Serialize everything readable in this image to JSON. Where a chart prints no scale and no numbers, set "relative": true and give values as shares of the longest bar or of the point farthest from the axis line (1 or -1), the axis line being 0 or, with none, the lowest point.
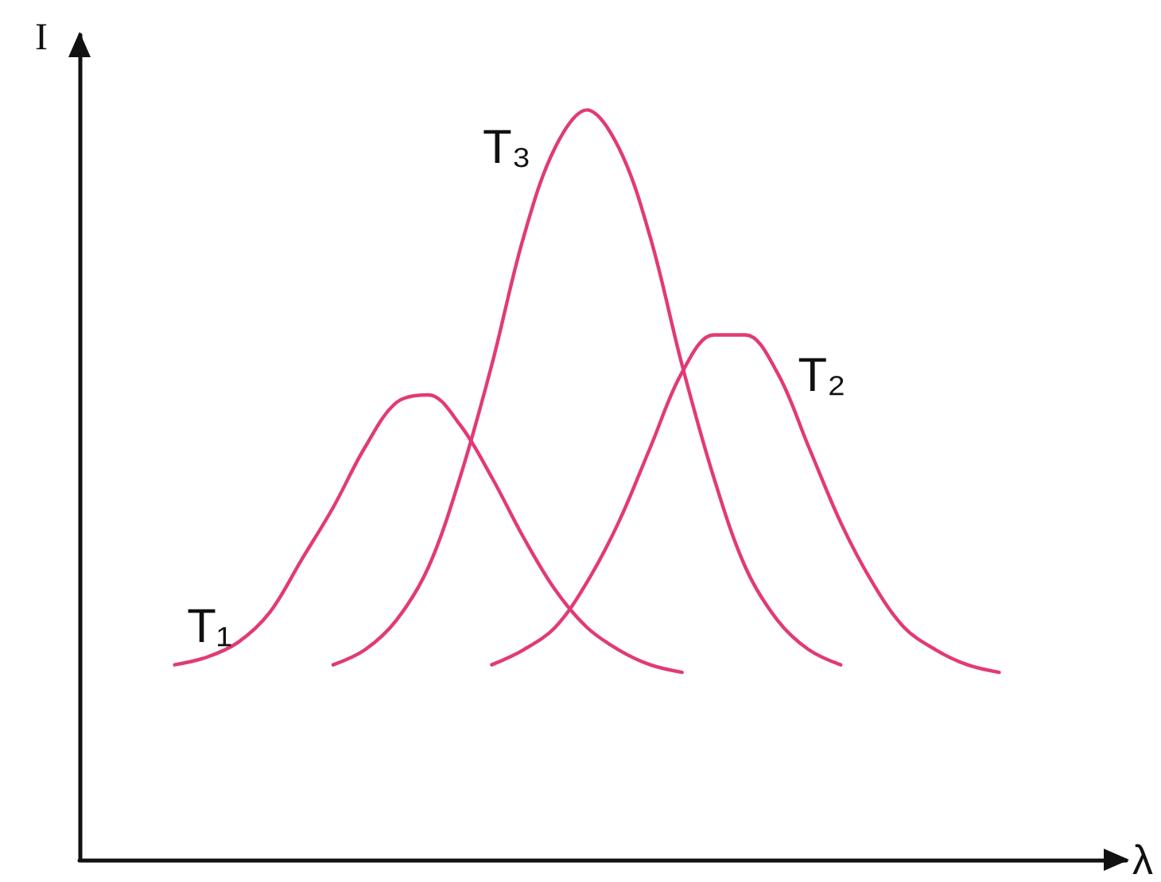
{
  "chart_data": {
    "type": "line",
    "relative": true,
    "xlabel": "λ",
    "ylabel": "I",
    "grid": false,
    "legend": false,
    "marker": "none",
    "line_style": "solid",
    "categories": [
      null,
      null,
      null,
      null,
      null,
      null,
      null,
      null,
      null,
      null,
      null,
      null,
      null,
      null,
      null,
      null,
      null,
      null,
      null,
      null,
      null,
      null,
      null,
      null,
      null,
      null,
      null,
      null,
      null,
      null,
      null,
      null,
      null,
      null
    ],
    "series": [
      {
        "name": "T₁",
        "color": "#e23a77",
        "values": [
          null,
          null,
          null,
          0.26,
          0.27,
          0.29,
          0.33,
          0.4,
          0.47,
          0.55,
          0.61,
          0.62,
          0.58,
          0.51,
          0.43,
          0.36,
          0.31,
          0.28,
          0.26,
          0.25,
          null,
          null,
          null,
          null,
          null,
          null,
          null,
          null,
          null,
          null,
          null,
          null,
          null,
          null
        ]
      },
      {
        "name": "T₂",
        "color": "#e23a77",
        "values": [
          null,
          null,
          null,
          null,
          null,
          null,
          null,
          null,
          null,
          null,
          null,
          null,
          null,
          0.26,
          0.28,
          0.31,
          0.37,
          0.45,
          0.55,
          0.65,
          0.7,
          0.7,
          0.65,
          0.55,
          0.45,
          0.37,
          0.31,
          0.28,
          0.26,
          0.25,
          null,
          null,
          null,
          null
        ]
      },
      {
        "name": "T₃",
        "color": "#e23a77",
        "values": [
          null,
          null,
          null,
          null,
          null,
          null,
          null,
          null,
          0.26,
          0.28,
          0.32,
          0.39,
          0.51,
          0.66,
          0.83,
          0.95,
          1.0,
          0.95,
          0.83,
          0.66,
          0.51,
          0.39,
          0.32,
          0.28,
          0.26,
          null,
          null,
          null,
          null,
          null,
          null,
          null,
          null,
          null
        ]
      }
    ]
  }
}
